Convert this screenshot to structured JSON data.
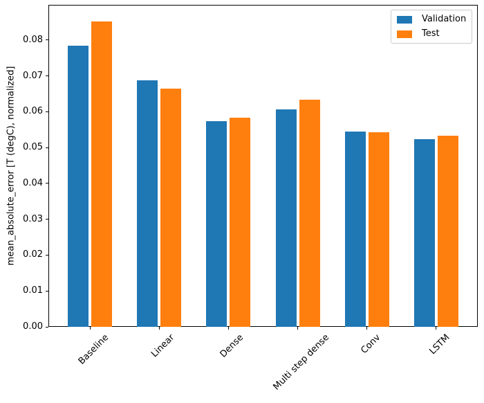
{
  "chart_data": {
    "type": "bar",
    "title": "",
    "xlabel": "",
    "ylabel": "mean_absolute_error [T (degC), normalized]",
    "categories": [
      "Baseline",
      "Linear",
      "Dense",
      "Multi step dense",
      "Conv",
      "LSTM"
    ],
    "series": [
      {
        "name": "Validation",
        "color": "#1f77b4",
        "values": [
          0.0785,
          0.0687,
          0.0573,
          0.0606,
          0.0545,
          0.0524
        ]
      },
      {
        "name": "Test",
        "color": "#ff7f0e",
        "values": [
          0.0852,
          0.0664,
          0.0583,
          0.0633,
          0.0543,
          0.0533
        ]
      }
    ],
    "yticks": [
      0.0,
      0.01,
      0.02,
      0.03,
      0.04,
      0.05,
      0.06,
      0.07,
      0.08
    ],
    "ytick_labels": [
      "0.00",
      "0.01",
      "0.02",
      "0.03",
      "0.04",
      "0.05",
      "0.06",
      "0.07",
      "0.08"
    ],
    "ylim": [
      0,
      0.0898
    ],
    "xlim": [
      -0.602,
      5.602
    ],
    "bar_width_units": 0.3,
    "offsets_units": [
      -0.17,
      0.17
    ],
    "grid": false,
    "legend_position": "upper right",
    "x_tick_rotation_deg": 45
  }
}
